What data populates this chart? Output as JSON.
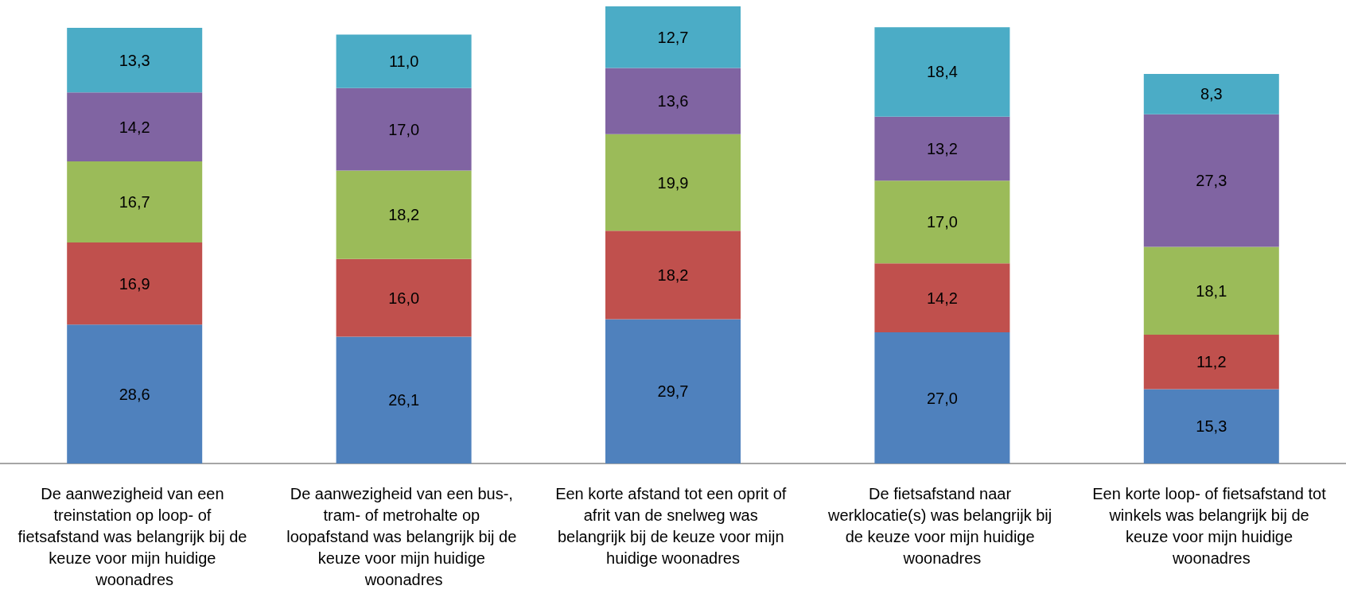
{
  "chart_data": {
    "type": "bar",
    "stacked": true,
    "categories": [
      "De aanwezigheid van een treinstation op loop- of fietsafstand was belangrijk bij de keuze voor mijn huidige woonadres",
      "De aanwezigheid van een bus-, tram- of metrohalte op loopafstand was belangrijk bij de keuze voor mijn huidige woonadres",
      "Een korte afstand tot een oprit of afrit van de snelweg was belangrijk bij de keuze voor mijn huidige woonadres",
      "De fietsafstand naar werklocatie(s) was belangrijk bij de keuze voor mijn huidige woonadres",
      "Een korte loop- of fietsafstand tot winkels was belangrijk bij de keuze voor mijn huidige woonadres"
    ],
    "series": [
      {
        "color": "#4f81bd",
        "values": [
          28.6,
          26.1,
          29.7,
          27.0,
          15.3
        ],
        "value_labels": [
          "28,6",
          "26,1",
          "29,7",
          "27,0",
          "15,3"
        ]
      },
      {
        "color": "#c0504d",
        "values": [
          16.9,
          16.0,
          18.2,
          14.2,
          11.2
        ],
        "value_labels": [
          "16,9",
          "16,0",
          "18,2",
          "14,2",
          "11,2"
        ]
      },
      {
        "color": "#9bbb59",
        "values": [
          16.7,
          18.2,
          19.9,
          17.0,
          18.1
        ],
        "value_labels": [
          "16,7",
          "18,2",
          "19,9",
          "17,0",
          "18,1"
        ]
      },
      {
        "color": "#8064a2",
        "values": [
          14.2,
          17.0,
          13.6,
          13.2,
          27.3
        ],
        "value_labels": [
          "14,2",
          "17,0",
          "13,6",
          "13,2",
          "27,3"
        ]
      },
      {
        "color": "#4bacc6",
        "values": [
          13.3,
          11.0,
          12.7,
          18.4,
          8.3
        ],
        "value_labels": [
          "13,3",
          "11,0",
          "12,7",
          "18,4",
          "8,3"
        ]
      }
    ]
  }
}
